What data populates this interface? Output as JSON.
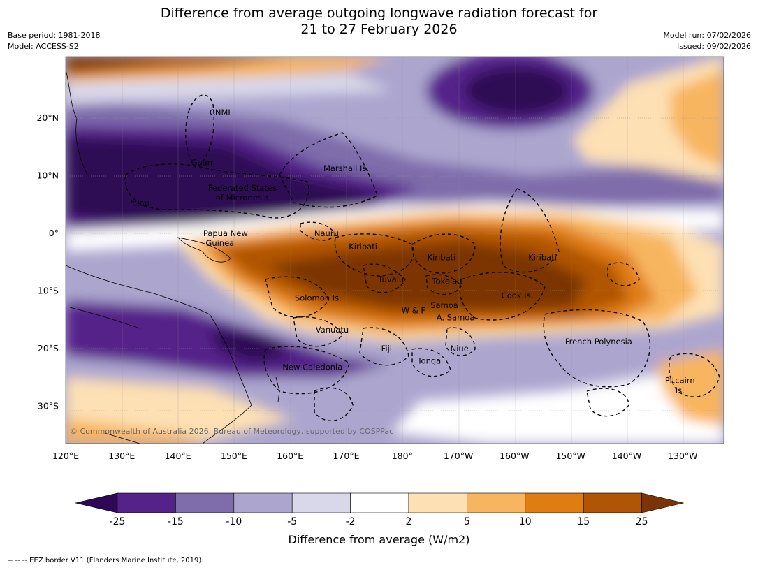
{
  "header": {
    "title_line1": "Difference from average outgoing longwave radiation forecast for",
    "title_line2": "21 to 27 February 2026",
    "base_period": "Base period: 1981-2018",
    "model": "Model: ACCESS-S2",
    "model_run": "Model run: 07/02/2026",
    "issued": "Issued: 09/02/2026"
  },
  "map": {
    "lon_ticks": [
      "120°E",
      "130°E",
      "140°E",
      "150°E",
      "160°E",
      "170°E",
      "180°",
      "170°W",
      "160°W",
      "150°W",
      "140°W",
      "130°W"
    ],
    "lat_ticks": [
      "20°N",
      "10°N",
      "0°",
      "10°S",
      "20°S",
      "30°S"
    ],
    "regions": [
      {
        "name": "CNMI",
        "lon": 147.5,
        "lat": 21
      },
      {
        "name": "Guam",
        "lon": 144.5,
        "lat": 12.3
      },
      {
        "name": "Federated States",
        "lon": 151.5,
        "lat": 7.9
      },
      {
        "name": "of Micronesia",
        "lon": 151.5,
        "lat": 6.2
      },
      {
        "name": "Palau",
        "lon": 133,
        "lat": 5.3
      },
      {
        "name": "Marshall Is.",
        "lon": 170,
        "lat": 11.3
      },
      {
        "name": "Papua New",
        "lon": 148.5,
        "lat": 0
      },
      {
        "name": "Guinea",
        "lon": 147.5,
        "lat": -1.7
      },
      {
        "name": "Nauru",
        "lon": 166.5,
        "lat": 0
      },
      {
        "name": "Kiribati",
        "lon": 173,
        "lat": -2.3
      },
      {
        "name": "Kiribati",
        "lon": -173,
        "lat": -4.2
      },
      {
        "name": "Kiribati",
        "lon": -155,
        "lat": -4.2
      },
      {
        "name": "Tuvalu",
        "lon": 178,
        "lat": -8
      },
      {
        "name": "Tokelau",
        "lon": -172,
        "lat": -8.3
      },
      {
        "name": "Cook Is.",
        "lon": -159.5,
        "lat": -10.8
      },
      {
        "name": "Solomon Is.",
        "lon": 165,
        "lat": -11.2
      },
      {
        "name": "W & F",
        "lon": -178,
        "lat": -13.4
      },
      {
        "name": "Samoa",
        "lon": -172.5,
        "lat": -12.5
      },
      {
        "name": "A. Samoa",
        "lon": -170.5,
        "lat": -14.6
      },
      {
        "name": "Vanuatu",
        "lon": 167.5,
        "lat": -16.7
      },
      {
        "name": "Fiji",
        "lon": 177.2,
        "lat": -20
      },
      {
        "name": "Niue",
        "lon": -169.8,
        "lat": -20
      },
      {
        "name": "French Polynesia",
        "lon": -145,
        "lat": -18.8
      },
      {
        "name": "Tonga",
        "lon": -175.2,
        "lat": -22.1
      },
      {
        "name": "New Caledonia",
        "lon": 164,
        "lat": -23.2
      },
      {
        "name": "Pitcairn",
        "lon": -130.5,
        "lat": -25.5
      },
      {
        "name": "Is.",
        "lon": -130.5,
        "lat": -27.3
      }
    ],
    "credit": "© Commonwealth of Australia 2026, Bureau of Meteorology, supported by COSPPac"
  },
  "colorbar": {
    "ticks": [
      "-25",
      "-15",
      "-10",
      "-5",
      "-2",
      "2",
      "5",
      "10",
      "15",
      "25"
    ],
    "colors": [
      "#2e0854",
      "#55228a",
      "#7e6cab",
      "#aca6cf",
      "#d9d8ea",
      "#ffffff",
      "#fde0b4",
      "#f8b55f",
      "#e07d12",
      "#b05406",
      "#7b3406"
    ],
    "label": "Difference from average (W/m2)"
  },
  "footer": {
    "eez_note": "--  --  -- EEZ border V11 (Flanders Marine Institute, 2019)."
  }
}
